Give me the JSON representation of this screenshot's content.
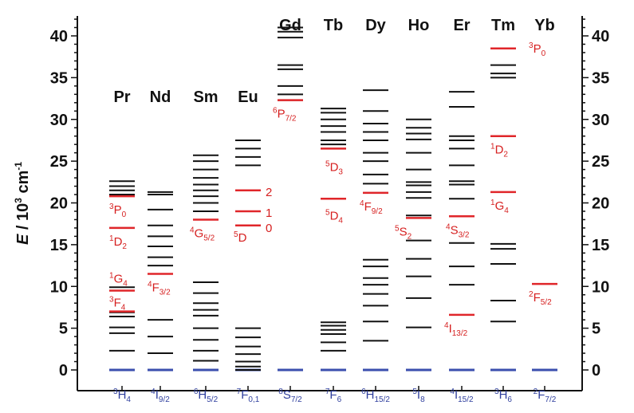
{
  "chart_data": {
    "type": "energy-level-diagram",
    "ylabel": {
      "italic": "E",
      "rest": " / 10",
      "sup": "3",
      "unit": " cm",
      "unit_sup": "-1"
    },
    "ylim": [
      0,
      42
    ],
    "yticks": [
      0,
      5,
      10,
      15,
      20,
      25,
      30,
      35,
      40
    ],
    "colors": {
      "black_level": "#111111",
      "red_level": "#e0262a",
      "ground_level": "#3b4fae",
      "red_text": "#d62020",
      "blue_text": "#2f3f9e"
    },
    "ions": [
      {
        "element": "Pr",
        "ground": {
          "sup": "3",
          "main": "H",
          "sub": "4"
        },
        "levels": [
          2.3,
          4.4,
          5.1,
          6.4,
          6.9,
          9.9,
          17.0,
          21.0,
          21.5,
          22.0,
          22.6
        ],
        "red_levels": [
          7.0,
          9.5,
          17.0,
          20.8
        ],
        "labels": [
          {
            "sup": "3",
            "main": "P",
            "sub": "0",
            "e": 20.8
          },
          {
            "sup": "1",
            "main": "D",
            "sub": "2",
            "e": 17.0
          },
          {
            "sup": "1",
            "main": "G",
            "sub": "4",
            "e": 9.9
          },
          {
            "sup": "3",
            "main": "F",
            "sub": "4",
            "e": 7.0
          }
        ]
      },
      {
        "element": "Nd",
        "ground": {
          "sup": "4",
          "main": "I",
          "sub": "9/2"
        },
        "levels": [
          2.0,
          4.0,
          6.0,
          11.5,
          12.5,
          13.5,
          14.8,
          16.0,
          17.3,
          19.2,
          21.0,
          21.3
        ],
        "red_levels": [
          11.5
        ],
        "labels": [
          {
            "sup": "4",
            "main": "F",
            "sub": "3/2",
            "e": 11.5
          }
        ]
      },
      {
        "element": "Sm",
        "ground": {
          "sup": "6",
          "main": "H",
          "sub": "5/2"
        },
        "levels": [
          1.1,
          2.3,
          3.6,
          5.0,
          6.5,
          7.2,
          8.0,
          9.2,
          10.5,
          18.0,
          19.0,
          20.0,
          20.8,
          21.5,
          22.2,
          23.0,
          24.0,
          25.0,
          25.7
        ],
        "red_levels": [
          18.0
        ],
        "labels": [
          {
            "sup": "4",
            "main": "G",
            "sub": "5/2",
            "e": 18.0
          }
        ]
      },
      {
        "element": "Eu",
        "ground": {
          "sup": "7",
          "main": "F",
          "sub": "0,1"
        },
        "levels": [
          0.0,
          0.4,
          1.0,
          1.9,
          2.8,
          3.9,
          5.0,
          24.5,
          25.5,
          26.5,
          27.5
        ],
        "red_levels": [
          17.3,
          19.0,
          21.5
        ],
        "labels": [
          {
            "sup": "5",
            "main": "D",
            "sub": "",
            "e": 17.3
          },
          {
            "plain": "0",
            "e": 17.3
          },
          {
            "plain": "1",
            "e": 19.0
          },
          {
            "plain": "2",
            "e": 21.5
          }
        ]
      },
      {
        "element": "Gd",
        "ground": {
          "sup": "8",
          "main": "S",
          "sub": "7/2"
        },
        "levels": [
          32.3,
          33.0,
          34.0,
          36.0,
          36.5,
          39.8,
          40.5,
          41.0
        ],
        "red_levels": [
          32.3
        ],
        "labels": [
          {
            "sup": "6",
            "main": "P",
            "sub": "7/2",
            "e": 32.3
          }
        ]
      },
      {
        "element": "Tb",
        "ground": {
          "sup": "7",
          "main": "F",
          "sub": "6"
        },
        "levels": [
          2.3,
          3.3,
          4.3,
          4.8,
          5.3,
          5.7,
          26.5,
          27.0,
          27.5,
          28.5,
          29.2,
          30.0,
          30.8,
          31.3
        ],
        "red_levels": [
          20.5,
          26.5
        ],
        "labels": [
          {
            "sup": "5",
            "main": "D",
            "sub": "3",
            "e": 26.3
          },
          {
            "sup": "5",
            "main": "D",
            "sub": "4",
            "e": 20.5
          }
        ]
      },
      {
        "element": "Dy",
        "ground": {
          "sup": "6",
          "main": "H",
          "sub": "15/2"
        },
        "levels": [
          3.5,
          5.8,
          7.7,
          9.1,
          10.2,
          11.0,
          12.4,
          13.2,
          21.2,
          22.3,
          23.4,
          25.0,
          26.0,
          27.5,
          28.5,
          29.5,
          31.0,
          33.5
        ],
        "red_levels": [
          21.2
        ],
        "labels": [
          {
            "sup": "4",
            "main": "F",
            "sub": "9/2",
            "e": 21.2
          }
        ]
      },
      {
        "element": "Ho",
        "ground": {
          "sup": "5",
          "main": "I",
          "sub": "8"
        },
        "levels": [
          5.1,
          8.6,
          11.2,
          13.3,
          15.5,
          18.5,
          20.6,
          21.3,
          22.1,
          22.5,
          24.0,
          26.0,
          27.6,
          28.3,
          29.0,
          30.0
        ],
        "red_levels": [
          18.2
        ],
        "labels": [
          {
            "sup": "5",
            "main": "S",
            "sub": "2",
            "e": 18.2
          }
        ]
      },
      {
        "element": "Er",
        "ground": {
          "sup": "4",
          "main": "I",
          "sub": "15/2"
        },
        "levels": [
          10.2,
          12.4,
          15.2,
          18.4,
          20.5,
          22.2,
          22.6,
          24.5,
          26.5,
          27.5,
          28.0,
          31.5,
          33.3
        ],
        "red_levels": [
          6.6,
          18.4
        ],
        "labels": [
          {
            "sup": "4",
            "main": "S",
            "sub": "3/2",
            "e": 18.4
          },
          {
            "sup": "4",
            "main": "I",
            "sub": "13/2",
            "e": 6.6
          }
        ]
      },
      {
        "element": "Tm",
        "ground": {
          "sup": "3",
          "main": "H",
          "sub": "6"
        },
        "levels": [
          5.8,
          8.3,
          12.7,
          14.5,
          15.1,
          35.0,
          35.5,
          36.5,
          38.5
        ],
        "red_levels": [
          21.3,
          28.0,
          38.5
        ],
        "labels": [
          {
            "sup": "1",
            "main": "D",
            "sub": "2",
            "e": 28.0
          },
          {
            "sup": "1",
            "main": "G",
            "sub": "4",
            "e": 21.3
          }
        ]
      },
      {
        "element": "Yb",
        "ground": {
          "sup": "2",
          "main": "F",
          "sub": "7/2"
        },
        "levels": [],
        "red_levels": [
          10.3
        ],
        "labels": [
          {
            "sup": "3",
            "main": "P",
            "sub": "0",
            "e": 37.5
          },
          {
            "sup": "2",
            "main": "F",
            "sub": "5/2",
            "e": 10.3
          }
        ]
      }
    ]
  }
}
